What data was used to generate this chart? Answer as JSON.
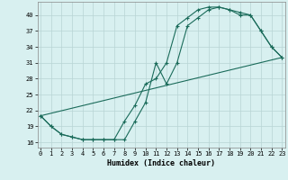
{
  "line1_x": [
    0,
    1,
    2,
    3,
    4,
    5,
    6,
    7,
    8,
    9,
    10,
    11,
    12,
    13,
    14,
    15,
    16,
    17,
    18,
    19,
    20,
    21,
    22,
    23
  ],
  "line1_y": [
    21,
    19,
    17.5,
    17,
    16.5,
    16.5,
    16.5,
    16.5,
    20,
    23,
    27,
    28,
    31,
    38,
    39.5,
    41,
    41.5,
    41.5,
    41,
    40.5,
    40,
    37,
    34,
    32
  ],
  "line2_x": [
    0,
    1,
    2,
    3,
    4,
    5,
    6,
    7,
    8,
    9,
    10,
    11,
    12,
    13,
    14,
    15,
    16,
    17,
    18,
    19,
    20,
    21,
    22,
    23
  ],
  "line2_y": [
    21,
    19,
    17.5,
    17,
    16.5,
    16.5,
    16.5,
    16.5,
    16.5,
    20,
    23.5,
    31,
    27,
    31,
    38,
    39.5,
    41,
    41.5,
    41,
    40,
    40,
    37,
    34,
    32
  ],
  "line3_x": [
    0,
    23
  ],
  "line3_y": [
    21,
    32
  ],
  "line_color": "#1a6b5a",
  "bg_color": "#d8f0f0",
  "grid_color": "#b8d4d4",
  "xlabel": "Humidex (Indice chaleur)",
  "yticks": [
    16,
    19,
    22,
    25,
    28,
    31,
    34,
    37,
    40
  ],
  "xticks": [
    0,
    1,
    2,
    3,
    4,
    5,
    6,
    7,
    8,
    9,
    10,
    11,
    12,
    13,
    14,
    15,
    16,
    17,
    18,
    19,
    20,
    21,
    22,
    23
  ],
  "xlim": [
    -0.3,
    23.3
  ],
  "ylim": [
    15.0,
    42.5
  ]
}
